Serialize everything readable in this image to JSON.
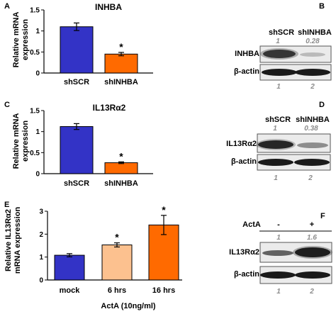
{
  "panels": {
    "A": {
      "letter": "A",
      "ylabel_line1": "Relative mRNA",
      "ylabel_line2": "expression",
      "title": "INHBA",
      "significance": "*"
    },
    "B": {
      "letter": "B",
      "lanes": [
        "shSCR",
        "shINHBA"
      ],
      "quant_top": [
        "1",
        "0.28"
      ],
      "row1_label": "INHBA",
      "row2_label": "β-actin",
      "lane_numbers": [
        "1",
        "2"
      ]
    },
    "C": {
      "letter": "C",
      "ylabel_line1": "Relative mRNA",
      "ylabel_line2": "expression",
      "title": "IL13Rα2",
      "significance": "*"
    },
    "D": {
      "letter": "D",
      "lanes": [
        "shSCR",
        "shINHBA"
      ],
      "quant_top": [
        "1",
        "0.38"
      ],
      "row1_label": "IL13Rα2",
      "row2_label": "β-actin",
      "lane_numbers": [
        "1",
        "2"
      ]
    },
    "E": {
      "letter": "E",
      "ylabel_line1": "Relative IL13Rα2",
      "ylabel_line2": "mRNA expression",
      "xlabel": "ActA (10ng/ml)",
      "significance": "*"
    },
    "F": {
      "letter": "F",
      "treatment_label": "ActA",
      "lanes": [
        "-",
        "+"
      ],
      "quant_top": [
        "1",
        "1.6"
      ],
      "row1_label": "IL13Rα2",
      "row2_label": "β-actin",
      "lane_numbers": [
        "1",
        "2"
      ]
    }
  },
  "chart_data": [
    {
      "id": "A",
      "type": "bar",
      "title": "INHBA",
      "ylabel": "Relative mRNA expression",
      "categories": [
        "shSCR",
        "shINHBA"
      ],
      "values": [
        1.1,
        0.45
      ],
      "errors": [
        0.09,
        0.04
      ],
      "colors": [
        "#3333c6",
        "#ff6a00"
      ],
      "ylim": [
        0,
        1.5
      ],
      "yticks": [
        "0",
        "0.5",
        "1",
        "1.5"
      ],
      "significant": [
        false,
        true
      ]
    },
    {
      "id": "C",
      "type": "bar",
      "title": "IL13Rα2",
      "ylabel": "Relative mRNA expression",
      "categories": [
        "shSCR",
        "shINHBA"
      ],
      "values": [
        1.12,
        0.26
      ],
      "errors": [
        0.07,
        0.02
      ],
      "colors": [
        "#3333c6",
        "#ff6a00"
      ],
      "ylim": [
        0,
        1.5
      ],
      "yticks": [
        "0",
        "0.5",
        "1",
        "1.5"
      ],
      "significant": [
        false,
        true
      ]
    },
    {
      "id": "E",
      "type": "bar",
      "xlabel": "ActA (10ng/ml)",
      "ylabel": "Relative IL13Rα2 mRNA expression",
      "categories": [
        "mock",
        "6 hrs",
        "16 hrs"
      ],
      "values": [
        1.08,
        1.53,
        2.4
      ],
      "errors": [
        0.07,
        0.09,
        0.42
      ],
      "colors": [
        "#3333c6",
        "#fcc18f",
        "#ff6a00"
      ],
      "ylim": [
        0,
        3
      ],
      "yticks": [
        "0",
        "1",
        "2",
        "3"
      ],
      "significant": [
        false,
        true,
        true
      ]
    }
  ]
}
